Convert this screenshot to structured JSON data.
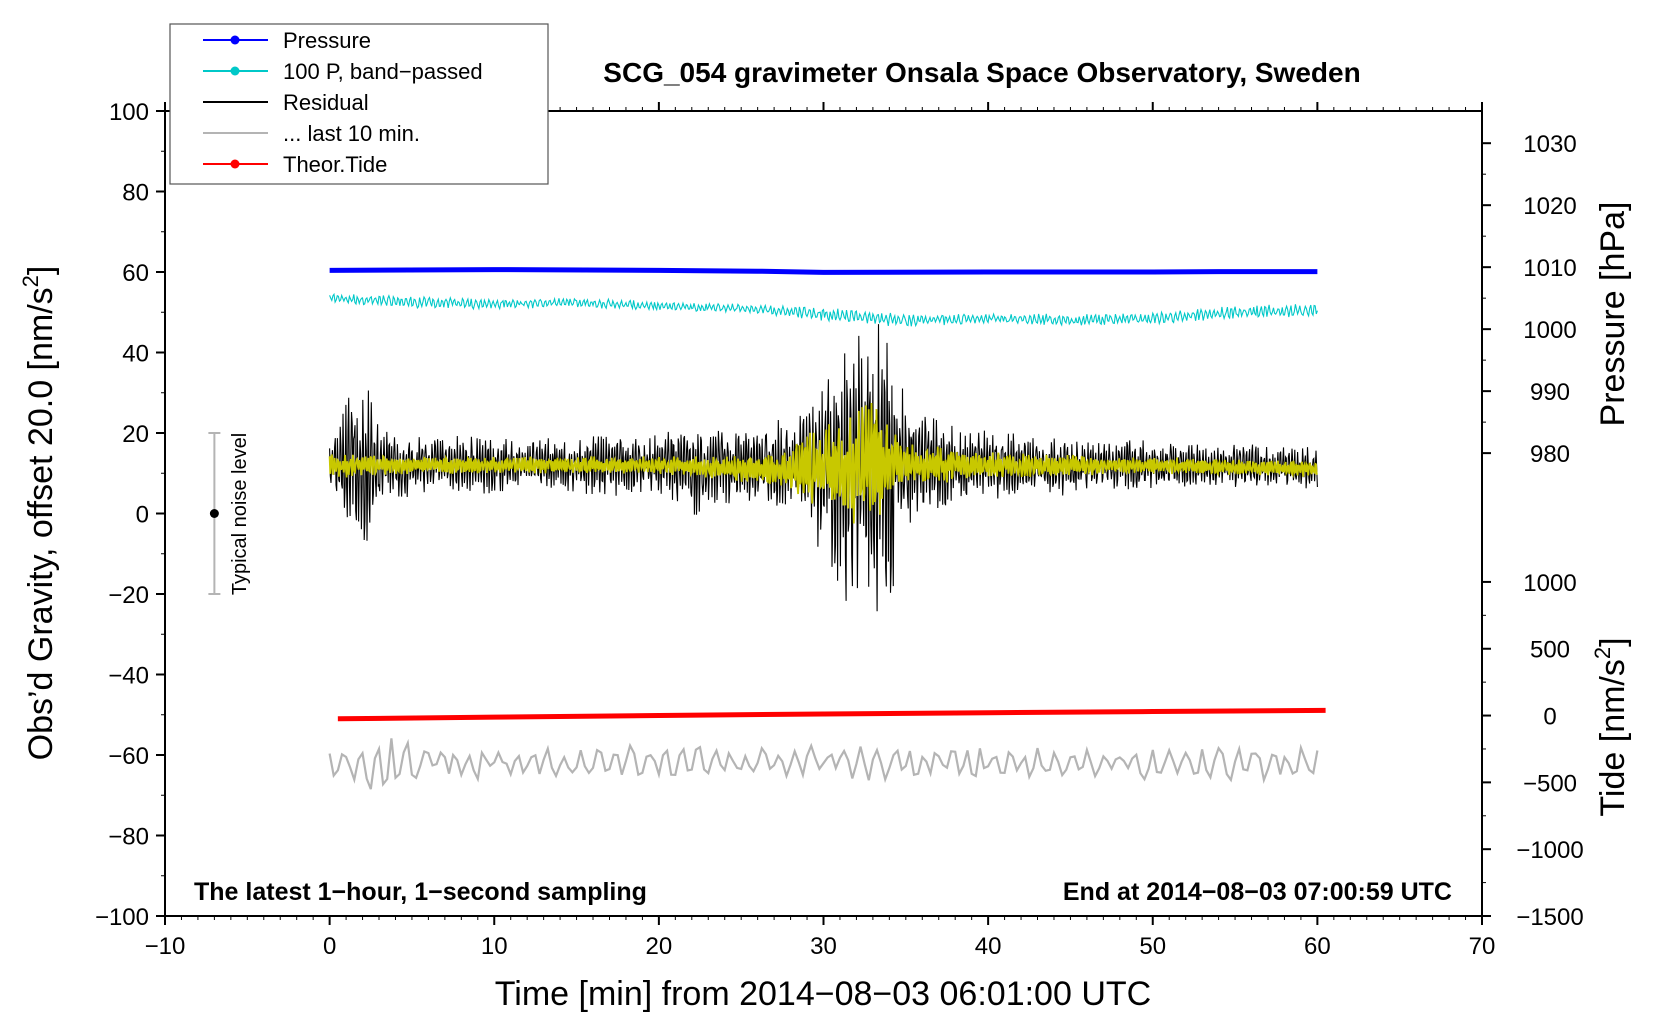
{
  "chart_data": {
    "type": "line",
    "title": "SCG_054 gravimeter Onsala Space Observatory, Sweden",
    "xlabel": "Time [min] from 2014−08−03 06:01:00 UTC",
    "ylabel": "Obs’d Gravity, offset 20.0 [nm/s",
    "ylabel_sup": "2",
    "ylabel_end": "]",
    "y2label": "Pressure [hPa]",
    "y3label": "Tide [nm/s",
    "y3label_sup": "2",
    "y3label_end": "]",
    "xlim": [
      -10,
      70
    ],
    "ylim": [
      -100,
      100
    ],
    "x_ticks": [
      -10,
      0,
      10,
      20,
      30,
      40,
      50,
      60,
      70
    ],
    "x_tick_labels": [
      "−10",
      "0",
      "10",
      "20",
      "30",
      "40",
      "50",
      "60",
      "70"
    ],
    "y_ticks": [
      -100,
      -80,
      -60,
      -40,
      -20,
      0,
      20,
      40,
      60,
      80,
      100
    ],
    "y_tick_labels": [
      "−100",
      "−80",
      "−60",
      "−40",
      "−20",
      "0",
      "20",
      "40",
      "60",
      "80",
      "100"
    ],
    "pressure_axis": {
      "ticks": [
        980,
        990,
        1000,
        1010,
        1020,
        1030
      ],
      "tick_labels": [
        "980",
        "990",
        "1000",
        "1010",
        "1020",
        "1030"
      ],
      "map": {
        "value_a": 1030,
        "gravity_a": 92,
        "value_b": 980,
        "gravity_b": 15
      }
    },
    "tide_axis": {
      "ticks": [
        -1500,
        -1000,
        -500,
        0,
        500,
        1000
      ],
      "tick_labels": [
        "−1500",
        "−1000",
        "−500",
        "0",
        "500",
        "1000"
      ],
      "map": {
        "value_a": 1000,
        "gravity_a": -17,
        "value_b": -1500,
        "gravity_b": -100
      }
    },
    "note_left": "The latest 1−hour, 1−second sampling",
    "note_right": "End at 2014−08−03 07:00:59 UTC",
    "noise_label": "Typical noise level",
    "noise_bar": {
      "x": -7,
      "y_low": -20,
      "y_high": 20,
      "center": 0
    },
    "legend": [
      {
        "label": "Pressure",
        "color": "#0000ff",
        "marker": true
      },
      {
        "label": "100 P, band−passed",
        "color": "#00c8c8",
        "marker": true
      },
      {
        "label": "Residual",
        "color": "#000000",
        "marker": false
      },
      {
        "label": "... last 10 min.",
        "color": "#b4b4b4",
        "marker": false
      },
      {
        "label": "Theor.Tide",
        "color": "#ff0000",
        "marker": true
      }
    ],
    "series": [
      {
        "name": "Pressure",
        "color": "#0000ff",
        "style": "thick",
        "x": [
          0,
          10,
          20,
          26,
          30,
          40,
          50,
          54,
          60
        ],
        "y": [
          60.4,
          60.6,
          60.4,
          60.2,
          59.9,
          60.0,
          60.0,
          60.1,
          60.1
        ]
      },
      {
        "name": "100 P, band−passed",
        "color": "#00c8c8",
        "style": "noisy",
        "x": [
          0,
          5,
          10,
          15,
          20,
          25,
          30,
          35,
          40,
          45,
          50,
          55,
          60
        ],
        "y": [
          53.5,
          52.5,
          52.0,
          52.5,
          51.5,
          51.0,
          49.5,
          48.0,
          48.5,
          48.0,
          48.5,
          50.0,
          50.5
        ],
        "amplitude": [
          1.2,
          1.4,
          1.2,
          1.2,
          1.0,
          1.0,
          1.8,
          1.5,
          1.2,
          1.4,
          1.4,
          1.5,
          1.6
        ]
      },
      {
        "name": "Residual",
        "color": "#000000",
        "style": "noisy",
        "x": [
          0,
          0.8,
          1.5,
          2.2,
          3,
          5,
          8,
          12,
          16,
          20,
          23,
          24,
          26,
          28,
          29,
          30,
          31,
          32,
          33,
          34,
          35,
          36,
          38,
          40,
          44,
          48,
          52,
          56,
          60
        ],
        "y": [
          11,
          12,
          12,
          11,
          12,
          12,
          12,
          12,
          12,
          12,
          11,
          12,
          12,
          12,
          12,
          11,
          10,
          11,
          12,
          11,
          12,
          12,
          12,
          12,
          12,
          12,
          12,
          12,
          11
        ],
        "amplitude": [
          6,
          15,
          18,
          20,
          10,
          7,
          7,
          6,
          7,
          7,
          12,
          9,
          9,
          11,
          13,
          22,
          30,
          33,
          38,
          36,
          14,
          12,
          9,
          8,
          7,
          6,
          5,
          5,
          5
        ]
      },
      {
        "name": "Residual (filtered)",
        "color": "#c8c800",
        "style": "noisy",
        "x": [
          0,
          5,
          10,
          15,
          20,
          25,
          27,
          28,
          29,
          30,
          31,
          32,
          33,
          34,
          35,
          40,
          50,
          60
        ],
        "y": [
          12,
          12,
          12,
          12,
          12,
          11,
          11,
          11,
          11,
          12,
          11,
          11,
          13,
          12,
          12,
          12,
          12,
          11
        ],
        "amplitude": [
          3,
          2,
          2,
          2,
          2,
          3,
          4,
          6,
          8,
          10,
          12,
          14,
          14,
          10,
          5,
          3,
          2,
          2
        ]
      },
      {
        "name": "... last 10 min.",
        "color": "#b4b4b4",
        "style": "noisy",
        "x": [
          0,
          2,
          3,
          3.5,
          4,
          6,
          10,
          20,
          30,
          40,
          50,
          60
        ],
        "y": [
          -62,
          -63,
          -64,
          -64,
          -63,
          -62,
          -62,
          -62,
          -62,
          -62,
          -62,
          -62
        ],
        "amplitude": [
          3,
          5,
          9,
          8,
          6,
          4,
          4,
          4,
          4,
          4,
          4,
          4
        ]
      },
      {
        "name": "Theor.Tide",
        "color": "#ff0000",
        "style": "thick",
        "x": [
          0.5,
          10,
          20,
          30,
          40,
          50,
          60.5
        ],
        "y": [
          -51.0,
          -50.6,
          -50.2,
          -49.8,
          -49.5,
          -49.2,
          -48.9
        ]
      }
    ]
  }
}
